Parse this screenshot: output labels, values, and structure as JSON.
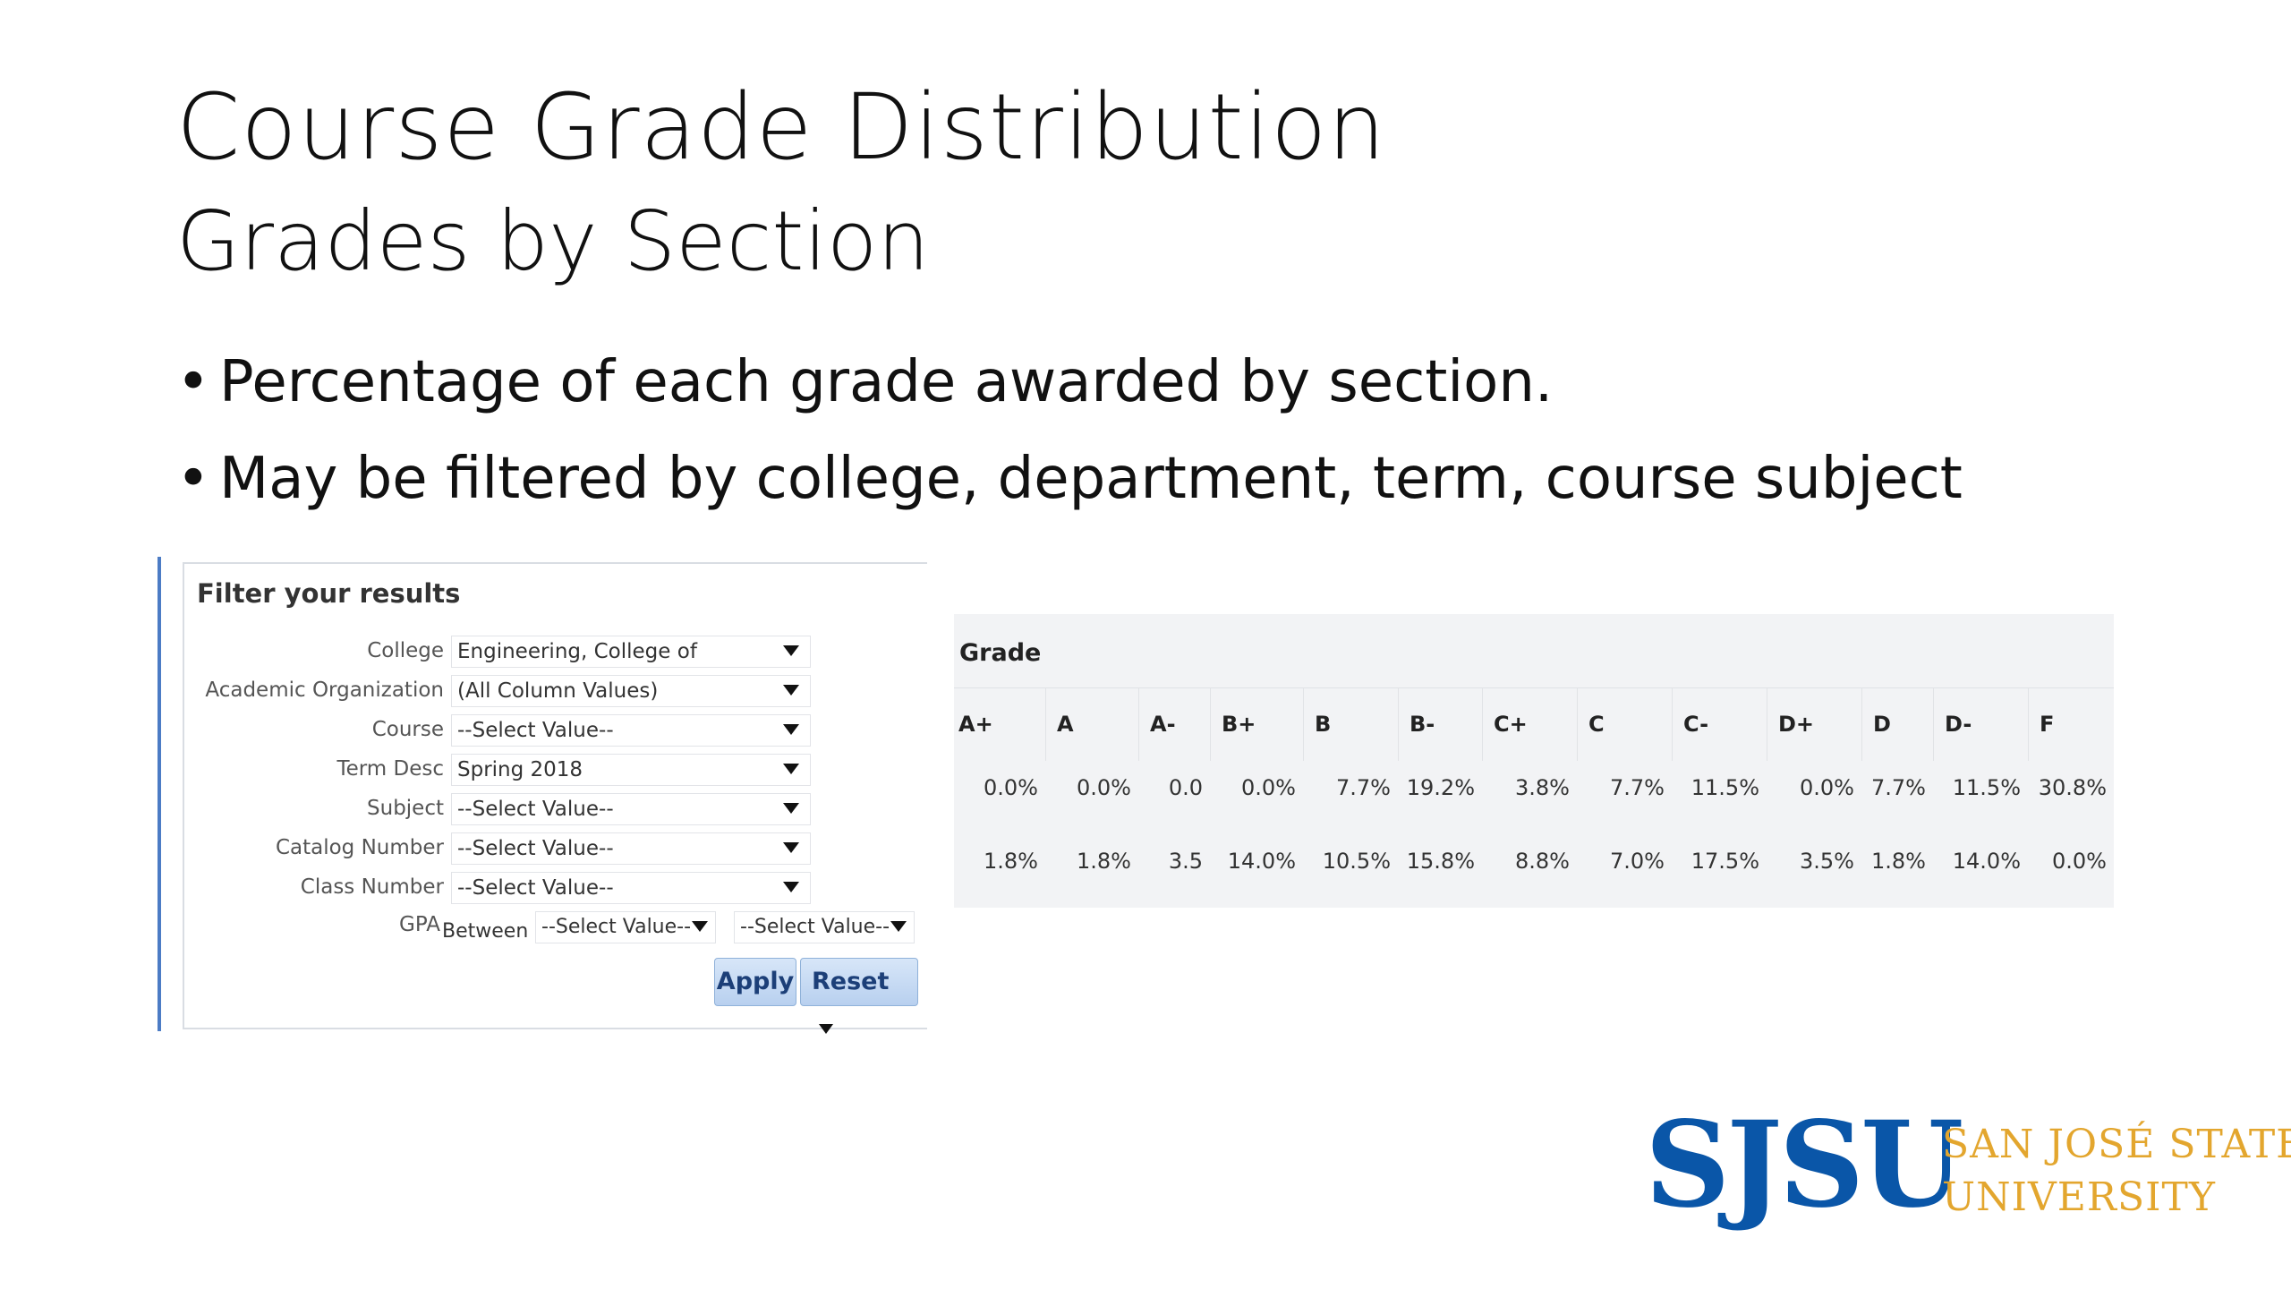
{
  "slide": {
    "title": "Course Grade Distribution",
    "subtitle": "Grades by Section",
    "bullets": [
      "Percentage of each grade awarded by section.",
      "May be filtered by college, department, term, course subject"
    ]
  },
  "filter": {
    "title": "Filter your results",
    "fields": [
      {
        "label": "College",
        "value": "Engineering, College of"
      },
      {
        "label": "Academic Organization",
        "value": "(All Column Values)"
      },
      {
        "label": "Course",
        "value": "--Select Value--"
      },
      {
        "label": "Term Desc",
        "value": "Spring 2018"
      },
      {
        "label": "Subject",
        "value": "--Select Value--"
      },
      {
        "label": "Catalog Number",
        "value": "--Select Value--"
      },
      {
        "label": "Class Number",
        "value": "--Select Value--"
      }
    ],
    "gpa": {
      "label": "GPA",
      "between": "Between",
      "from": "--Select Value--",
      "separator": "-",
      "to": "--Select Value--"
    },
    "apply_label": "Apply",
    "reset_label": "Reset"
  },
  "grade_table": {
    "title": "Grade",
    "columns": [
      "A+",
      "A",
      "A-",
      "B+",
      "B",
      "B-",
      "C+",
      "C",
      "C-",
      "D+",
      "D",
      "D-",
      "F"
    ],
    "rows": [
      [
        "0.0%",
        "0.0%",
        "0.0",
        "0.0%",
        "7.7%",
        "19.2%",
        "3.8%",
        "7.7%",
        "11.5%",
        "0.0%",
        "7.7%",
        "11.5%",
        "30.8%"
      ],
      [
        "1.8%",
        "1.8%",
        "3.5",
        "14.0%",
        "10.5%",
        "15.8%",
        "8.8%",
        "7.0%",
        "17.5%",
        "3.5%",
        "1.8%",
        "14.0%",
        "0.0%"
      ]
    ]
  },
  "logo": {
    "mark": "SJSU",
    "line1": "SAN JOSÉ STATE",
    "line2": "UNIVERSITY",
    "mark_color": "#0a56a8",
    "text_color": "#e3a62e"
  }
}
